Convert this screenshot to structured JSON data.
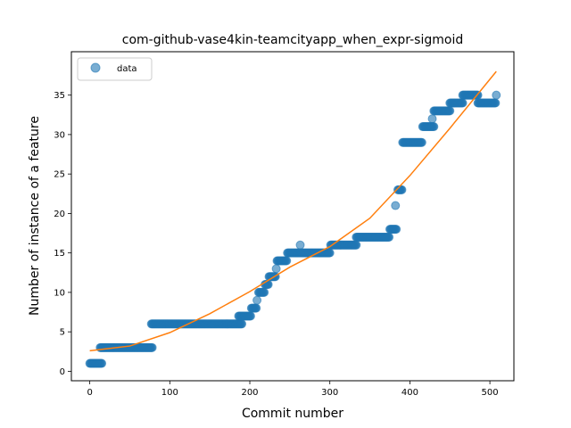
{
  "chart_data": {
    "type": "scatter",
    "title": "com-github-vase4kin-teamcityapp_when_expr-sigmoid",
    "xlabel": "Commit number",
    "ylabel": "Number of instance of a feature",
    "xlim": [
      -23,
      530
    ],
    "ylim": [
      -1.2,
      40.5
    ],
    "xticks": [
      0,
      100,
      200,
      300,
      400,
      500
    ],
    "yticks": [
      0,
      5,
      10,
      15,
      20,
      25,
      30,
      35
    ],
    "grid": false,
    "legend": {
      "placement": "top-left",
      "entries": [
        "data"
      ]
    },
    "colors": {
      "points": "#1f77b4",
      "fit": "#ff7f0e"
    },
    "series": [
      {
        "name": "data",
        "kind": "scatter",
        "segments": [
          {
            "x_start": 0,
            "x_end": 15,
            "y": 1
          },
          {
            "x_start": 13,
            "x_end": 78,
            "y": 3
          },
          {
            "x_start": 77,
            "x_end": 190,
            "y": 6
          },
          {
            "x_start": 186,
            "x_end": 201,
            "y": 7
          },
          {
            "x_start": 202,
            "x_end": 208,
            "y": 8
          },
          {
            "x_start": 211,
            "x_end": 218,
            "y": 10
          },
          {
            "x_start": 219,
            "x_end": 223,
            "y": 11
          },
          {
            "x_start": 224,
            "x_end": 232,
            "y": 12
          },
          {
            "x_start": 234,
            "x_end": 246,
            "y": 14
          },
          {
            "x_start": 247,
            "x_end": 300,
            "y": 15
          },
          {
            "x_start": 301,
            "x_end": 333,
            "y": 16
          },
          {
            "x_start": 333,
            "x_end": 374,
            "y": 17
          },
          {
            "x_start": 375,
            "x_end": 383,
            "y": 18
          },
          {
            "x_start": 385,
            "x_end": 390,
            "y": 23
          },
          {
            "x_start": 391,
            "x_end": 415,
            "y": 29
          },
          {
            "x_start": 416,
            "x_end": 430,
            "y": 31
          },
          {
            "x_start": 430,
            "x_end": 450,
            "y": 33
          },
          {
            "x_start": 450,
            "x_end": 466,
            "y": 34
          },
          {
            "x_start": 466,
            "x_end": 485,
            "y": 35
          },
          {
            "x_start": 485,
            "x_end": 507,
            "y": 34
          }
        ],
        "extra_points": [
          [
            209,
            9
          ],
          [
            233,
            13
          ],
          [
            263,
            16
          ],
          [
            382,
            21
          ],
          [
            428,
            32
          ],
          [
            508,
            35
          ]
        ]
      },
      {
        "kind": "line",
        "x": [
          0,
          50,
          100,
          150,
          200,
          250,
          300,
          350,
          400,
          450,
          508
        ],
        "y": [
          2.6,
          3.2,
          4.9,
          7.3,
          10.1,
          13.2,
          15.8,
          19.4,
          24.8,
          30.8,
          38.0
        ]
      }
    ]
  }
}
